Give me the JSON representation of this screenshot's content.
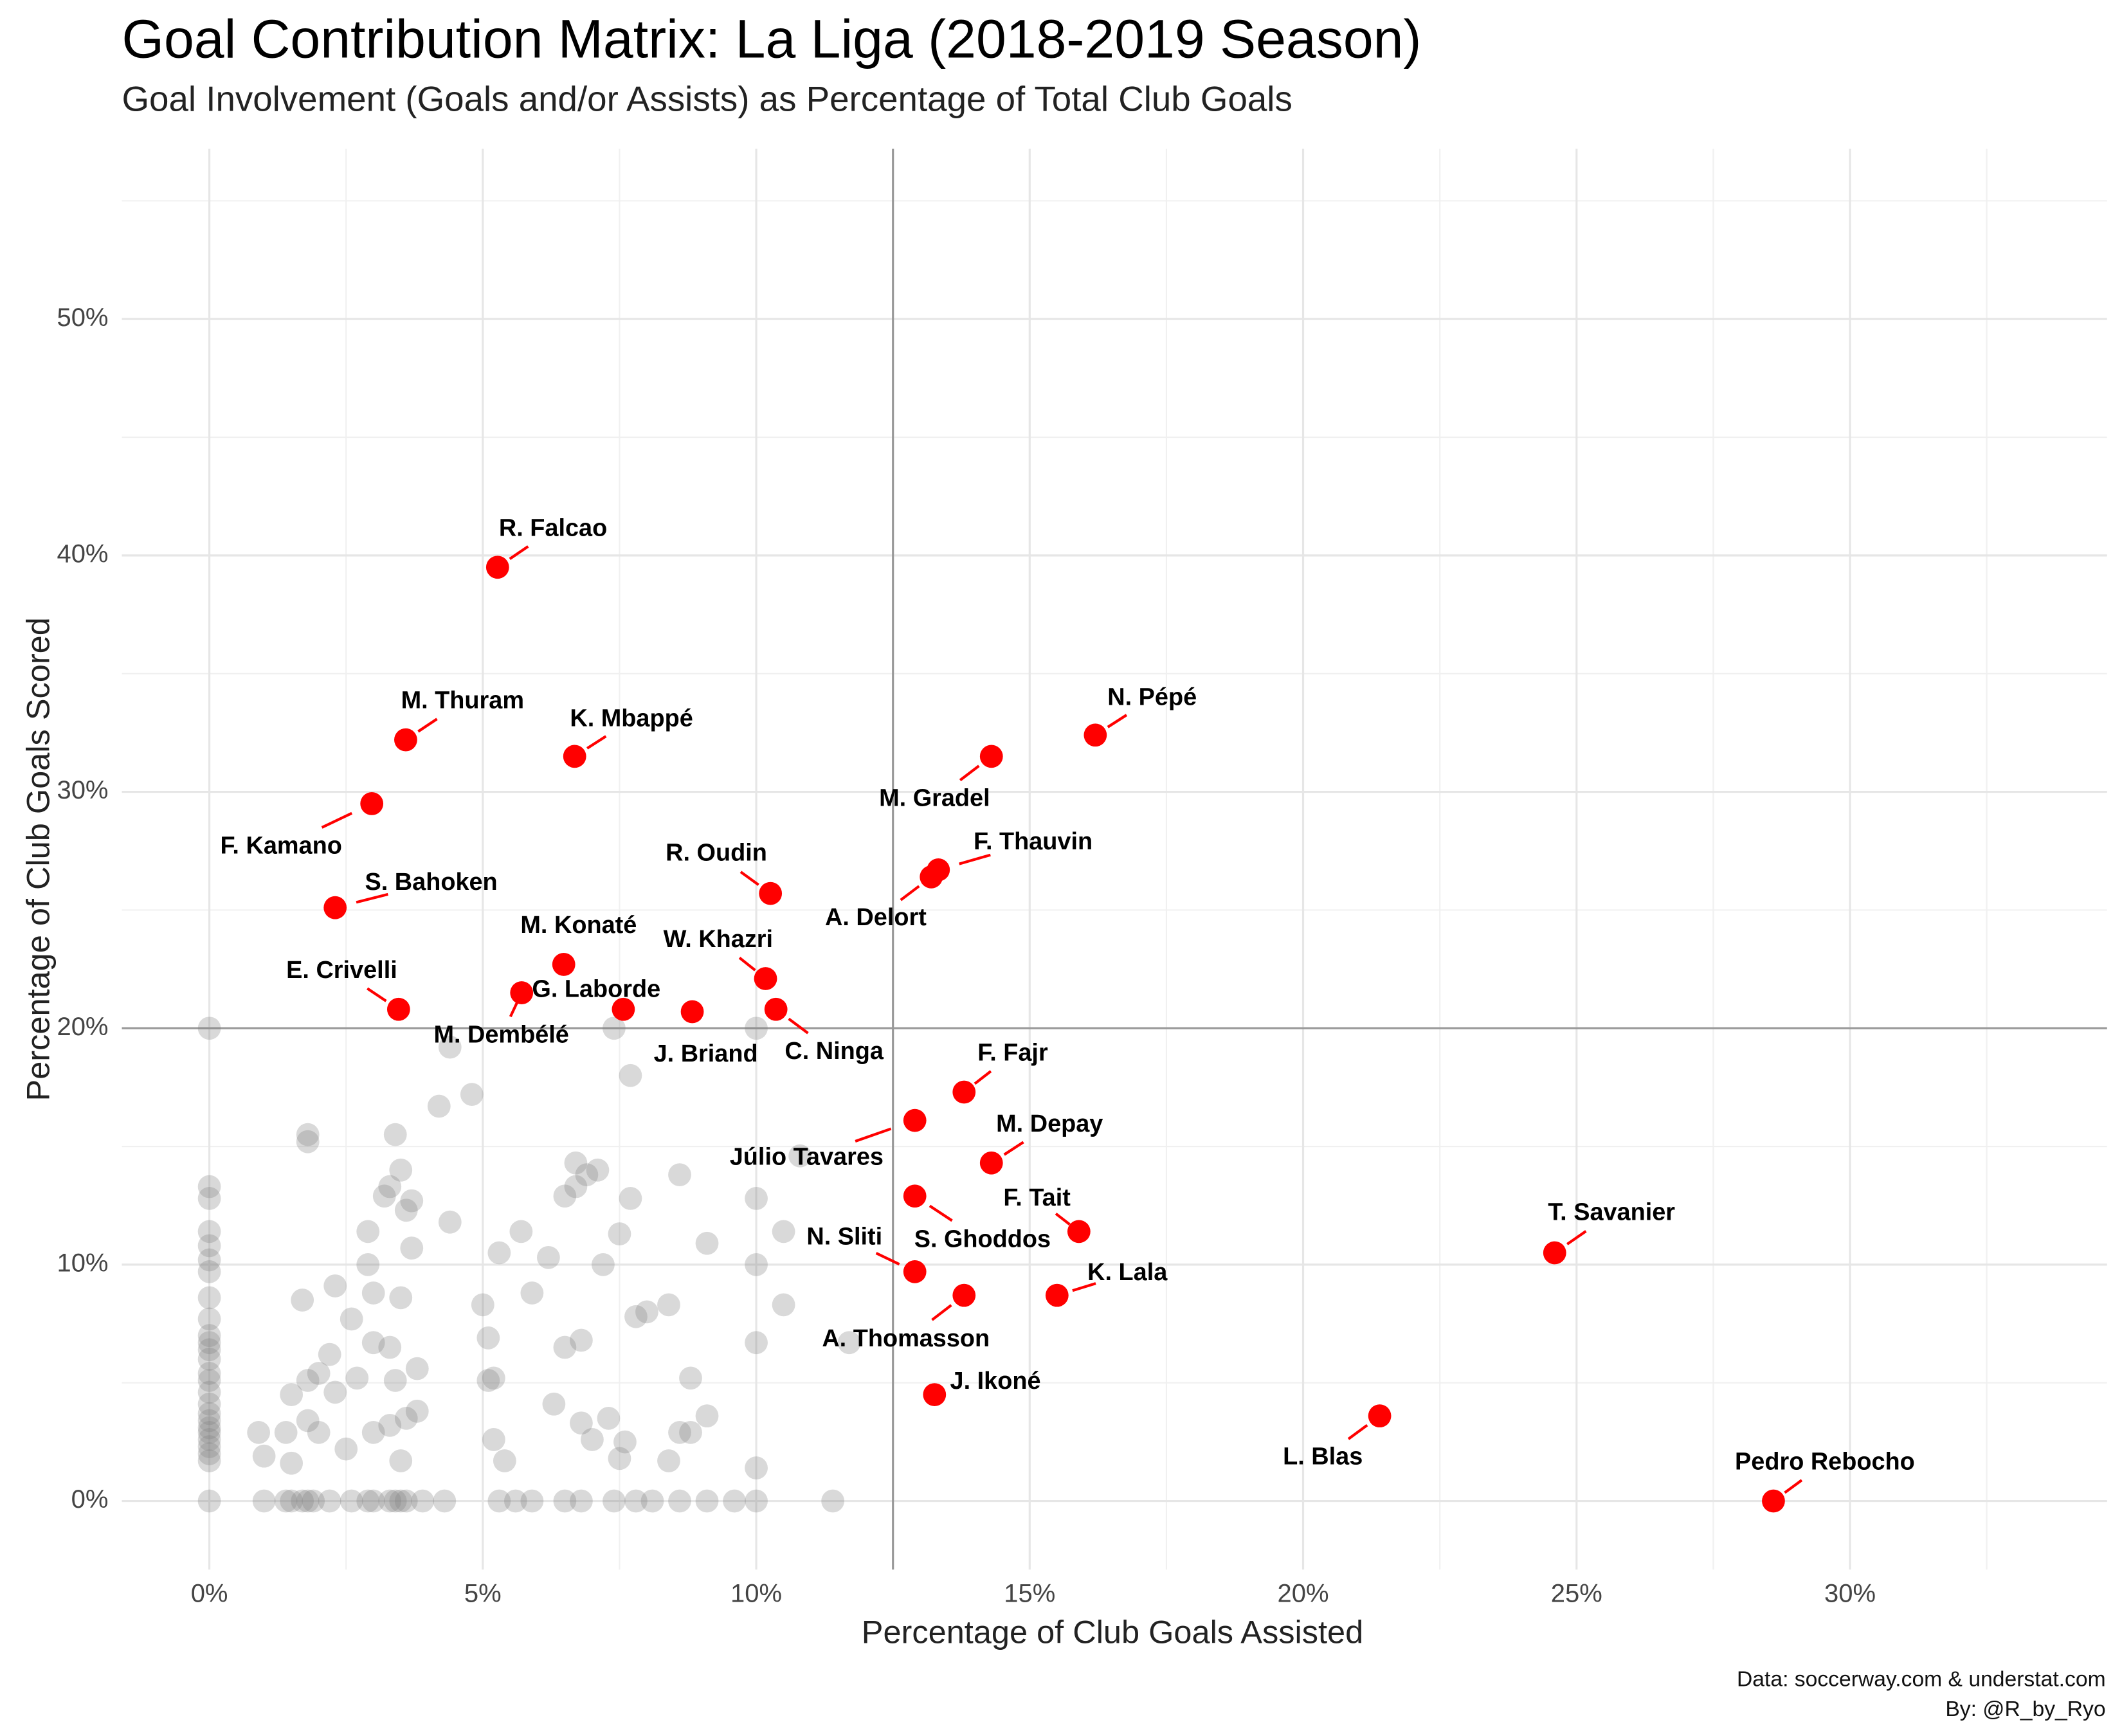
{
  "chart_data": {
    "type": "scatter",
    "title": "Goal Contribution Matrix: La Liga (2018-2019 Season)",
    "subtitle": "Goal Involvement (Goals and/or Assists) as Percentage of Total Club Goals",
    "x_label": "Percentage of Club Goals Assisted",
    "y_label": "Percentage of Club Goals Scored",
    "caption": [
      "Data: soccerway.com & understat.com",
      "By: @R_by_Ryo"
    ],
    "xlim": [
      -1.6,
      34.7
    ],
    "ylim": [
      -2.9,
      57.2
    ],
    "xticks": [
      {
        "value": 0,
        "label": "0%"
      },
      {
        "value": 5,
        "label": "5%"
      },
      {
        "value": 10,
        "label": "10%"
      },
      {
        "value": 15,
        "label": "15%"
      },
      {
        "value": 20,
        "label": "20%"
      },
      {
        "value": 25,
        "label": "25%"
      },
      {
        "value": 30,
        "label": "30%"
      }
    ],
    "yticks": [
      {
        "value": 0,
        "label": "0%"
      },
      {
        "value": 10,
        "label": "10%"
      },
      {
        "value": 20,
        "label": "20%"
      },
      {
        "value": 30,
        "label": "30%"
      },
      {
        "value": 40,
        "label": "40%"
      },
      {
        "value": 50,
        "label": "50%"
      }
    ],
    "x_minor_grid": [
      2.5,
      7.5,
      12.5,
      17.5,
      22.5,
      27.5,
      32.5
    ],
    "y_minor_grid": [
      5,
      15,
      25,
      35,
      45,
      55
    ],
    "grid": true,
    "vlines": [
      12.5
    ],
    "hlines": [
      20
    ],
    "series": [
      {
        "color": "#808080",
        "x": [
          0,
          0,
          0,
          0,
          0,
          0,
          0,
          0,
          0,
          0,
          0,
          0,
          0,
          0,
          0,
          0,
          0,
          0,
          0,
          0,
          0,
          0,
          0,
          0,
          0,
          0,
          1,
          1.4,
          1.5,
          1.7,
          1.8,
          1.9,
          2.2,
          2.6,
          2.9,
          3,
          3.3,
          3.4,
          3.5,
          3.6,
          3.9,
          4.3,
          5.3,
          5.6,
          5.9,
          6.5,
          6.8,
          7.4,
          7.8,
          8.1,
          8.6,
          9.1,
          9.6,
          10,
          11.4,
          0.9,
          1,
          1.4,
          1.5,
          1.5,
          1.7,
          1.8,
          1.8,
          1.8,
          1.8,
          2,
          2,
          2.2,
          2.3,
          2.3,
          2.5,
          2.6,
          2.7,
          2.9,
          2.9,
          3,
          3,
          3,
          3.2,
          3.3,
          3.3,
          3.3,
          3.4,
          3.4,
          3.5,
          3.5,
          3.5,
          3.6,
          3.6,
          3.7,
          3.7,
          3.8,
          3.8,
          4.2,
          4.4,
          4.4,
          4.8,
          5,
          5.1,
          5.1,
          5.2,
          5.2,
          5.3,
          5.4,
          5.7,
          5.9,
          6.2,
          6.3,
          6.5,
          6.5,
          6.7,
          6.7,
          6.8,
          6.8,
          6.9,
          7,
          7.1,
          7.2,
          7.3,
          7.4,
          7.5,
          7.5,
          7.6,
          7.7,
          7.7,
          7.8,
          8,
          8.4,
          8.4,
          8.6,
          8.6,
          8.8,
          8.8,
          9.1,
          9.1,
          10,
          10,
          10,
          10,
          10,
          10.8,
          10.5,
          10.5,
          11.7
        ],
        "y": [
          0,
          1.7,
          2,
          2.3,
          2.6,
          2.9,
          3.1,
          3.4,
          3.7,
          4.1,
          4.6,
          5.1,
          5.4,
          6,
          6.4,
          6.7,
          7,
          7.7,
          8.6,
          9.7,
          10.2,
          10.8,
          11.4,
          12.8,
          13.3,
          20,
          0,
          0,
          0,
          0,
          0,
          0,
          0,
          0,
          0,
          0,
          0,
          0,
          0,
          0,
          0,
          0,
          0,
          0,
          0,
          0,
          0,
          0,
          0,
          0,
          0,
          0,
          0,
          0,
          0,
          2.9,
          1.9,
          2.9,
          4.5,
          1.6,
          8.5,
          15.5,
          15.2,
          5.1,
          3.4,
          5.4,
          2.9,
          6.2,
          4.6,
          9.1,
          2.2,
          7.7,
          5.2,
          11.4,
          10,
          8.8,
          6.7,
          2.9,
          12.9,
          6.5,
          3.2,
          13.3,
          5.1,
          15.5,
          8.6,
          14,
          1.7,
          12.3,
          3.5,
          10.7,
          12.7,
          5.6,
          3.8,
          16.7,
          19.2,
          11.8,
          17.2,
          8.3,
          5.1,
          6.9,
          5.2,
          2.6,
          10.5,
          1.7,
          11.4,
          8.8,
          10.3,
          4.1,
          6.5,
          12.9,
          14.3,
          13.3,
          6.8,
          3.3,
          13.8,
          2.6,
          14,
          10,
          3.5,
          20,
          1.8,
          11.3,
          2.5,
          18,
          12.8,
          7.8,
          8,
          8.3,
          1.7,
          2.9,
          13.8,
          5.2,
          2.9,
          10.9,
          3.6,
          20,
          12.8,
          10,
          6.7,
          1.4,
          14.6,
          8.3,
          11.4,
          6.7
        ]
      },
      {
        "color": "#ff0000",
        "labels": [
          "R. Falcao",
          "M. Thuram",
          "K. Mbappé",
          "N. Pépé",
          "M. Gradel",
          "F. Kamano",
          "R. Oudin",
          "F. Thauvin",
          "A. Delort",
          "S. Bahoken",
          "M. Konaté",
          "W. Khazri",
          "M. Dembélé",
          "G. Laborde",
          "E. Crivelli",
          "J. Briand",
          "C. Ninga",
          "F. Fajr",
          "Júlio Tavares",
          "M. Depay",
          "S. Ghoddos",
          "F. Tait",
          "T. Savanier",
          "N. Sliti",
          "K. Lala",
          "A. Thomasson",
          "J. Ikoné",
          "L. Blas",
          "Pedro Rebocho"
        ],
        "x": [
          5.27,
          3.59,
          6.68,
          16.2,
          14.3,
          2.97,
          10.26,
          13.33,
          13.2,
          2.3,
          6.48,
          10.17,
          5.71,
          7.57,
          3.46,
          8.83,
          10.36,
          13.8,
          12.9,
          14.3,
          12.9,
          15.9,
          24.6,
          12.9,
          15.5,
          13.8,
          13.26,
          21.4,
          28.6
        ],
        "y": [
          39.5,
          32.2,
          31.5,
          32.4,
          31.5,
          29.5,
          25.7,
          26.7,
          26.4,
          25.1,
          22.7,
          22.1,
          21.5,
          20.8,
          20.8,
          20.7,
          20.8,
          17.3,
          16.1,
          14.3,
          12.9,
          11.4,
          10.5,
          9.7,
          8.7,
          8.7,
          4.5,
          3.6,
          0
        ]
      }
    ]
  }
}
